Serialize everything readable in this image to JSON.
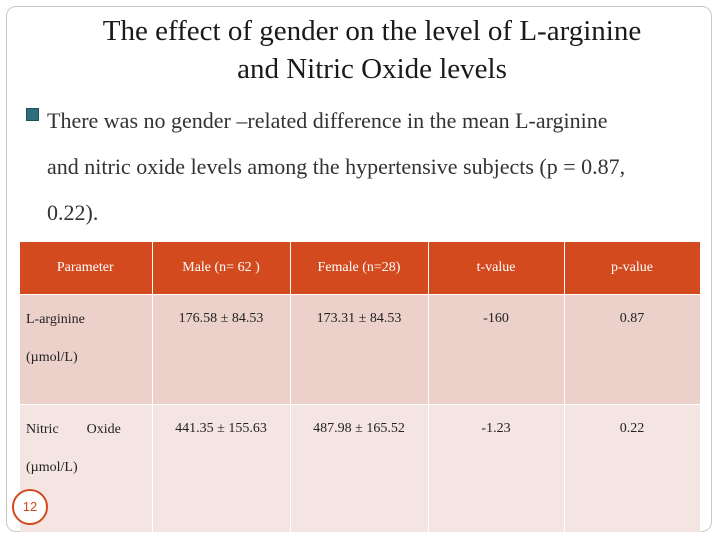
{
  "title": {
    "line1": "The effect of gender on the level of L-arginine",
    "line2": "and Nitric Oxide levels"
  },
  "bullet": {
    "line1": "There was no gender –related difference in the  mean L-arginine",
    "line2": "and nitric oxide levels among the hypertensive subjects (p = 0.87,",
    "line3": "0.22)."
  },
  "table": {
    "headers": [
      "Parameter",
      "Male (n= 62 )",
      "Female (n=28)",
      "t-value",
      "p-value"
    ],
    "rows": [
      {
        "name": "L-arginine",
        "unit": "(µmol/L)",
        "male": "176.58 ± 84.53",
        "female": "173.31 ± 84.53",
        "t": "-160",
        "p": "0.87"
      },
      {
        "name": "Nitric        Oxide",
        "unit": "(µmol/L)",
        "male": "441.35 ± 155.63",
        "female": "487.98 ± 165.52",
        "t": "-1.23",
        "p": "0.22"
      }
    ]
  },
  "slide_number": "12",
  "colors": {
    "header": "#d24a1e",
    "row_dark": "#ecd1cb",
    "row_light": "#f4e5e2",
    "bullet": "#2e6f7e"
  }
}
